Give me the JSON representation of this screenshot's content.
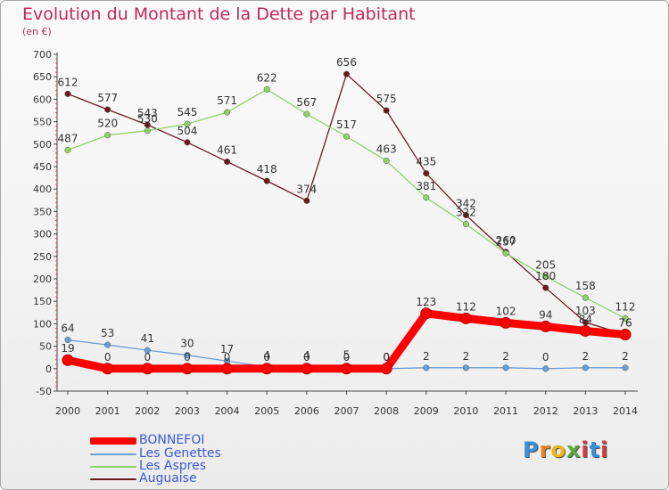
{
  "header": {
    "title": "Evolution du Montant de la Dette par Habitant",
    "subtitle": "(en €)"
  },
  "logo": {
    "text": "Proxiti",
    "colors": [
      "#3a8fd6",
      "#e8821e",
      "#f2b41e",
      "#5aa83c",
      "#d63a3a",
      "#3a8fd6",
      "#d63a3a"
    ]
  },
  "chart_data": {
    "type": "line",
    "title": "Evolution du Montant de la Dette par Habitant",
    "ylabel": "(en €)",
    "xlabel": "",
    "ylim": [
      -50,
      700
    ],
    "yticks": [
      -50,
      0,
      50,
      100,
      150,
      200,
      250,
      300,
      350,
      400,
      450,
      500,
      550,
      600,
      650,
      700
    ],
    "categories": [
      "2000",
      "2001",
      "2002",
      "2003",
      "2004",
      "2005",
      "2006",
      "2007",
      "2008",
      "2009",
      "2010",
      "2011",
      "2012",
      "2013",
      "2014"
    ],
    "grid": false,
    "legend": "bottom-left",
    "series": [
      {
        "name": "Auguaise",
        "color": "#6b1a1f",
        "values": [
          612,
          577,
          543,
          504,
          461,
          418,
          374,
          656,
          575,
          435,
          342,
          260,
          180,
          103,
          76
        ]
      },
      {
        "name": "Les Aspres",
        "color": "#8fd16a",
        "values": [
          487,
          520,
          530,
          545,
          571,
          622,
          567,
          517,
          463,
          381,
          322,
          257,
          205,
          158,
          112
        ]
      },
      {
        "name": "Les Genettes",
        "color": "#6a9ed6",
        "values": [
          64,
          53,
          41,
          30,
          17,
          4,
          4,
          5,
          0,
          2,
          2,
          2,
          0,
          2,
          2
        ]
      },
      {
        "name": "BONNEFOI",
        "color": "#ff0000",
        "values": [
          19,
          0,
          0,
          0,
          0,
          0,
          0,
          0,
          0,
          123,
          112,
          102,
          94,
          84,
          76
        ]
      }
    ],
    "data_labels": [
      {
        "series": "Auguaise",
        "labels": [
          "612",
          "577",
          "543",
          "504",
          "461",
          "418",
          "374",
          "656",
          "575",
          "435",
          "342",
          "260",
          "180",
          "103",
          "76"
        ]
      },
      {
        "series": "Les Aspres",
        "labels": [
          "487",
          "520",
          "530",
          "545",
          "571",
          "622",
          "567",
          "517",
          "463",
          "381",
          "322",
          "257",
          "205",
          "158",
          "112"
        ]
      },
      {
        "series": "Les Genettes",
        "labels": [
          "64",
          "53",
          "41",
          "30",
          "17",
          "4",
          "4",
          "5",
          "0",
          "2",
          "2",
          "2",
          "0",
          "2",
          "2"
        ]
      },
      {
        "series": "BONNEFOI",
        "labels": [
          "19",
          "0",
          "0",
          "0",
          "0",
          "0",
          "0",
          "0",
          "0",
          "123",
          "112",
          "102",
          "94",
          "84",
          "76"
        ]
      }
    ]
  },
  "legend": {
    "items": [
      {
        "label": "BONNEFOI",
        "color": "#ff0000",
        "weight": "thick"
      },
      {
        "label": "Les Genettes",
        "color": "#6a9ed6",
        "weight": "thin"
      },
      {
        "label": "Les Aspres",
        "color": "#8fd16a",
        "weight": "thin"
      },
      {
        "label": "Auguaise",
        "color": "#6b1a1f",
        "weight": "thin"
      }
    ]
  }
}
